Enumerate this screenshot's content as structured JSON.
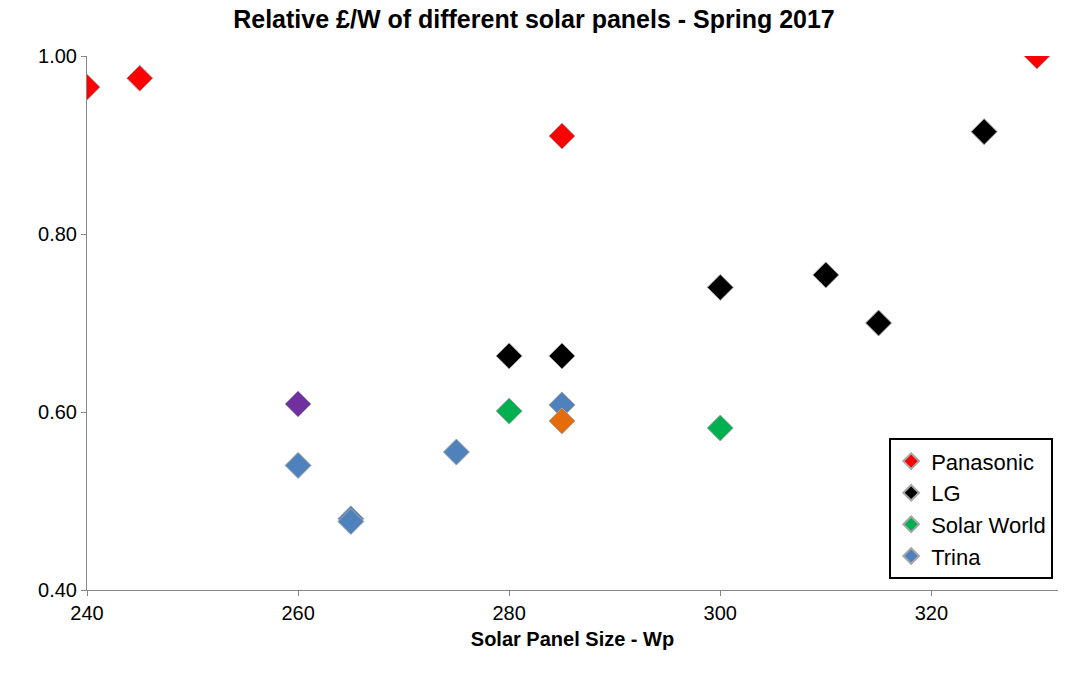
{
  "chart_data": {
    "type": "scatter",
    "title": "Relative £/W of different solar panels - Spring 2017",
    "x_label": "Solar Panel Size - Wp",
    "marker": "diamond",
    "grid": false,
    "legend": "lower right",
    "xlim": [
      240,
      332
    ],
    "xticks": [
      240,
      260,
      280,
      300,
      320
    ],
    "ylim": [
      0.4,
      1.0
    ],
    "yticks": [
      {
        "value": 0.4,
        "label": "0.40"
      },
      {
        "value": 0.6,
        "label": "0.60"
      },
      {
        "value": 0.8,
        "label": "0.80"
      },
      {
        "value": 1.0,
        "label": "1.00"
      }
    ],
    "series": [
      {
        "name": "Panasonic",
        "color": "#ff0000",
        "x": [
          240,
          245,
          285,
          330
        ],
        "values": [
          0.965,
          0.975,
          0.91,
          1.0
        ]
      },
      {
        "name": "LG",
        "color": "#000000",
        "x": [
          280,
          285,
          300,
          310,
          315,
          325
        ],
        "values": [
          0.663,
          0.663,
          0.74,
          0.754,
          0.7,
          0.915
        ]
      },
      {
        "name": "Solar World",
        "color": "#00b050",
        "x": [
          280,
          300
        ],
        "values": [
          0.601,
          0.582
        ]
      },
      {
        "name": "Trina",
        "color": "#4f81bd",
        "x": [
          260,
          265,
          265,
          275,
          285
        ],
        "values": [
          0.54,
          0.48,
          0.477,
          0.555,
          0.608
        ]
      },
      {
        "color": "#7030a0",
        "x": [
          260
        ],
        "values": [
          0.609
        ]
      },
      {
        "color": "#e46c0a",
        "x": [
          285
        ],
        "values": [
          0.59
        ]
      }
    ]
  }
}
